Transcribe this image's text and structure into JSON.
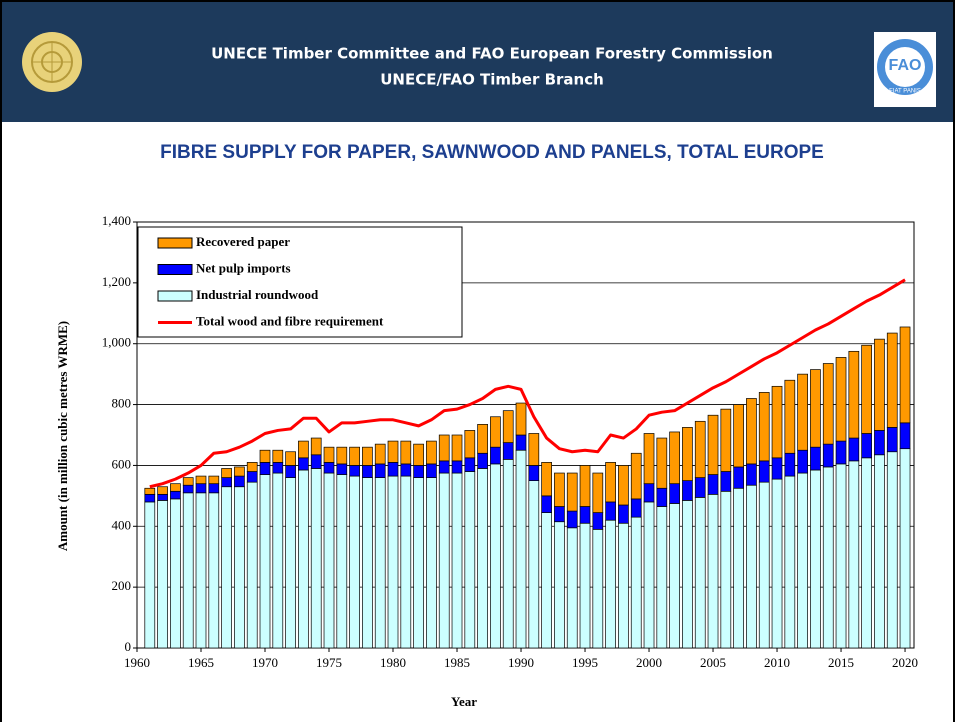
{
  "header": {
    "line1": "UNECE Timber Committee and FAO European Forestry Commission",
    "line2": "UNECE/FAO Timber Branch",
    "fao_logo": "FAO",
    "fao_motto": "FIAT PANIS"
  },
  "chart_data": {
    "type": "stacked_bar_line",
    "title": "FIBRE SUPPLY FOR PAPER, SAWNWOOD AND PANELS, TOTAL EUROPE",
    "x_label": "Year",
    "y_label": "Amount (in million cubic metres WRME)",
    "x": [
      1961,
      1962,
      1963,
      1964,
      1965,
      1966,
      1967,
      1968,
      1969,
      1970,
      1971,
      1972,
      1973,
      1974,
      1975,
      1976,
      1977,
      1978,
      1979,
      1980,
      1981,
      1982,
      1983,
      1984,
      1985,
      1986,
      1987,
      1988,
      1989,
      1990,
      1991,
      1992,
      1993,
      1994,
      1995,
      1996,
      1997,
      1998,
      1999,
      2000,
      2001,
      2002,
      2003,
      2004,
      2005,
      2006,
      2007,
      2008,
      2009,
      2010,
      2011,
      2012,
      2013,
      2014,
      2015,
      2016,
      2017,
      2018,
      2019,
      2020
    ],
    "series": [
      {
        "name": "Industrial roundwood",
        "color": "#ccffff",
        "values": [
          480,
          485,
          490,
          510,
          510,
          510,
          530,
          530,
          545,
          570,
          575,
          560,
          585,
          590,
          575,
          570,
          565,
          560,
          560,
          565,
          565,
          560,
          560,
          575,
          575,
          580,
          590,
          605,
          620,
          650,
          550,
          445,
          415,
          395,
          410,
          390,
          420,
          410,
          430,
          480,
          465,
          475,
          485,
          495,
          505,
          515,
          525,
          535,
          545,
          555,
          565,
          575,
          585,
          595,
          605,
          615,
          625,
          635,
          645,
          655
        ]
      },
      {
        "name": "Net pulp imports",
        "color": "#0000ff",
        "values": [
          25,
          20,
          25,
          25,
          30,
          30,
          30,
          35,
          35,
          40,
          35,
          40,
          40,
          45,
          35,
          35,
          35,
          40,
          45,
          45,
          40,
          40,
          45,
          40,
          40,
          45,
          50,
          55,
          55,
          50,
          50,
          55,
          50,
          55,
          55,
          55,
          60,
          60,
          60,
          60,
          60,
          65,
          65,
          65,
          65,
          65,
          70,
          70,
          70,
          70,
          75,
          75,
          75,
          75,
          75,
          75,
          80,
          80,
          80,
          85
        ]
      },
      {
        "name": "Recovered paper",
        "color": "#ff9900",
        "values": [
          20,
          25,
          25,
          25,
          25,
          25,
          30,
          30,
          30,
          40,
          40,
          45,
          55,
          55,
          50,
          55,
          60,
          60,
          65,
          70,
          75,
          70,
          75,
          85,
          85,
          90,
          95,
          100,
          105,
          105,
          105,
          110,
          110,
          125,
          135,
          130,
          130,
          130,
          150,
          165,
          165,
          170,
          175,
          185,
          195,
          205,
          205,
          215,
          225,
          235,
          240,
          250,
          255,
          265,
          275,
          285,
          290,
          300,
          310,
          315
        ]
      }
    ],
    "line_series": {
      "name": "Total wood and fibre requirement",
      "color": "#ff0000",
      "values": [
        530,
        540,
        555,
        575,
        600,
        640,
        645,
        660,
        680,
        705,
        715,
        720,
        755,
        755,
        710,
        740,
        740,
        745,
        750,
        750,
        740,
        730,
        750,
        780,
        785,
        800,
        820,
        850,
        860,
        850,
        760,
        690,
        655,
        645,
        650,
        645,
        700,
        690,
        720,
        765,
        775,
        780,
        805,
        830,
        855,
        875,
        900,
        925,
        950,
        970,
        995,
        1020,
        1045,
        1065,
        1090,
        1115,
        1140,
        1160,
        1185,
        1210
      ]
    },
    "xlim": [
      1960,
      2020.7
    ],
    "xticks": [
      1960,
      1965,
      1970,
      1975,
      1980,
      1985,
      1990,
      1995,
      2000,
      2005,
      2010,
      2015,
      2020
    ],
    "ylim": [
      0,
      1400
    ],
    "yticks": [
      0,
      200,
      400,
      600,
      800,
      {
        "value": 1000,
        "label": "1,000"
      },
      {
        "value": 1200,
        "label": "1,200"
      },
      {
        "value": 1400,
        "label": "1,400"
      }
    ],
    "grid": true,
    "legend": "top-left"
  }
}
